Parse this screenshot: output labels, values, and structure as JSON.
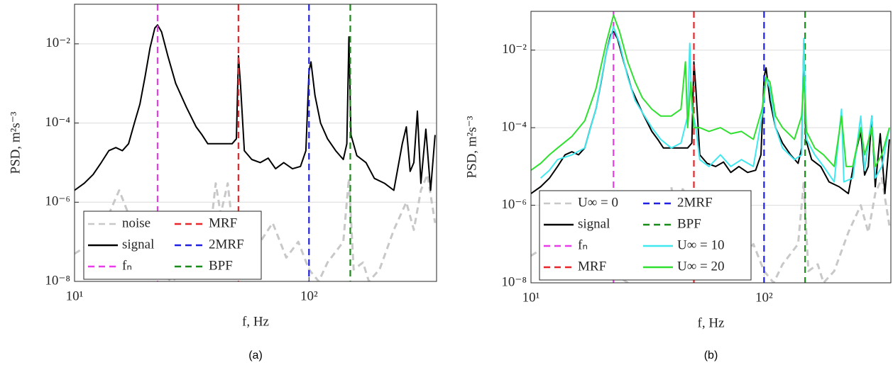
{
  "chart_data": [
    {
      "type": "line",
      "caption": "(a)",
      "xlabel": "f, Hz",
      "ylabel": "PSD, m²s⁻³",
      "xscale": "log",
      "yscale": "log",
      "xlim": [
        10,
        350
      ],
      "ylim": [
        1e-08,
        0.1
      ],
      "xticks": [
        {
          "value": 10,
          "label": "10¹"
        },
        {
          "value": 100,
          "label": "10²"
        }
      ],
      "yticks": [
        {
          "value": 1e-08,
          "label": "10⁻⁸"
        },
        {
          "value": 1e-06,
          "label": "10⁻⁶"
        },
        {
          "value": 0.0001,
          "label": "10⁻⁴"
        },
        {
          "value": 0.01,
          "label": "10⁻²"
        }
      ],
      "grid": true,
      "legend": "lower left",
      "series": [
        {
          "name": "noise",
          "color": "#c8c8c8",
          "style": "dashed",
          "x": [
            10,
            12,
            14,
            15.5,
            17,
            19,
            22,
            26,
            30,
            35,
            38,
            40,
            42,
            45,
            48,
            52,
            58,
            62,
            70,
            80,
            90,
            100,
            110,
            120,
            140,
            148,
            155,
            170,
            180,
            200,
            230,
            260,
            280,
            300,
            320,
            345
          ],
          "values": [
            5e-08,
            1e-07,
            5e-07,
            2e-06,
            5e-07,
            5e-08,
            2e-08,
            1e-08,
            2e-08,
            5e-08,
            2e-07,
            3e-06,
            5e-07,
            3e-06,
            1e-07,
            2e-07,
            2e-08,
            1e-07,
            3e-07,
            4e-08,
            1e-07,
            2e-08,
            1e-08,
            3e-08,
            1e-07,
            4e-06,
            2e-08,
            3e-08,
            1e-08,
            2e-08,
            2e-07,
            1e-06,
            2e-07,
            2e-06,
            5e-06,
            3e-07
          ]
        },
        {
          "name": "signal",
          "color": "#000000",
          "style": "solid",
          "x": [
            10,
            11,
            12,
            13,
            14,
            15,
            16,
            17,
            18,
            19,
            20,
            21,
            22,
            22.6,
            23.5,
            25,
            27,
            30,
            33,
            35,
            37,
            40,
            43,
            47,
            49,
            50,
            51,
            53,
            57,
            62,
            67,
            72,
            78,
            85,
            92,
            97,
            100,
            102,
            106,
            112,
            120,
            130,
            140,
            145,
            148,
            151,
            160,
            175,
            190,
            210,
            230,
            250,
            260,
            270,
            280,
            290,
            300,
            315,
            330,
            345
          ],
          "values": [
            2e-06,
            3e-06,
            5e-06,
            1e-05,
            2e-05,
            2.4e-05,
            2e-05,
            3e-05,
            0.0001,
            0.0003,
            0.0015,
            0.008,
            0.025,
            0.03,
            0.02,
            0.005,
            0.001,
            0.00025,
            8e-05,
            5e-05,
            3e-05,
            3e-05,
            3e-05,
            3e-05,
            4e-05,
            0.005,
            0.001,
            2e-05,
            1.2e-05,
            1e-05,
            1.3e-05,
            7e-06,
            1e-05,
            7e-06,
            8e-06,
            2e-05,
            0.002,
            0.0035,
            0.0005,
            0.0001,
            4e-05,
            2e-05,
            1.2e-05,
            3e-05,
            0.015,
            5e-05,
            1.5e-05,
            1e-05,
            4e-06,
            3e-06,
            2e-06,
            3e-05,
            8e-05,
            6e-06,
            1e-05,
            0.0002,
            3e-06,
            7e-05,
            2e-06,
            5e-05
          ]
        },
        {
          "name": "fₙ",
          "color": "#e83ce8",
          "style": "dashed",
          "x": 22.6
        },
        {
          "name": "MRF",
          "color": "#e8262a",
          "style": "dashed",
          "x": 50
        },
        {
          "name": "2MRF",
          "color": "#2020e0",
          "style": "dashed",
          "x": 100
        },
        {
          "name": "BPF",
          "color": "#1a8a1a",
          "style": "dashed",
          "x": 150
        }
      ]
    },
    {
      "type": "line",
      "caption": "(b)",
      "xlabel": "f, Hz",
      "ylabel": "PSD, m²s⁻³",
      "xscale": "log",
      "yscale": "log",
      "xlim": [
        10,
        350
      ],
      "ylim": [
        1e-08,
        0.1
      ],
      "xticks": [
        {
          "value": 10,
          "label": "10¹"
        },
        {
          "value": 100,
          "label": "10²"
        }
      ],
      "yticks": [
        {
          "value": 1e-08,
          "label": "10⁻⁸"
        },
        {
          "value": 1e-06,
          "label": "10⁻⁶"
        },
        {
          "value": 0.0001,
          "label": "10⁻⁴"
        },
        {
          "value": 0.01,
          "label": "10⁻²"
        }
      ],
      "grid": true,
      "legend": "lower left",
      "series": [
        {
          "name": "U∞ = 0",
          "color": "#c8c8c8",
          "style": "dashed",
          "x": [
            10,
            12,
            14,
            15.5,
            17,
            19,
            22,
            26,
            30,
            35,
            38,
            40,
            42,
            45,
            48,
            52,
            58,
            62,
            70,
            80,
            90,
            100,
            110,
            120,
            140,
            148,
            155,
            170,
            180,
            200,
            230,
            260,
            280,
            300,
            320,
            345
          ],
          "values": [
            5e-08,
            1e-07,
            5e-07,
            2e-06,
            5e-07,
            5e-08,
            2e-08,
            1e-08,
            2e-08,
            5e-08,
            2e-07,
            3e-06,
            5e-07,
            3e-06,
            1e-07,
            2e-07,
            2e-08,
            1e-07,
            3e-07,
            4e-08,
            1e-07,
            2e-08,
            1e-08,
            3e-08,
            1e-07,
            4e-06,
            2e-08,
            3e-08,
            1e-08,
            2e-08,
            2e-07,
            1e-06,
            2e-07,
            2e-06,
            5e-06,
            3e-07
          ]
        },
        {
          "name": "signal",
          "color": "#000000",
          "style": "solid",
          "x": [
            10,
            11,
            12,
            13,
            14,
            15,
            16,
            17,
            18,
            19,
            20,
            21,
            22,
            22.6,
            23.5,
            25,
            27,
            30,
            33,
            35,
            37,
            40,
            43,
            47,
            49,
            50,
            51,
            53,
            57,
            62,
            67,
            72,
            78,
            85,
            92,
            97,
            100,
            102,
            106,
            112,
            120,
            130,
            140,
            145,
            148,
            151,
            160,
            175,
            190,
            210,
            230,
            250,
            260,
            270,
            280,
            290,
            300,
            315,
            330,
            345
          ],
          "values": [
            2e-06,
            3e-06,
            5e-06,
            1e-05,
            2e-05,
            2.4e-05,
            2e-05,
            3e-05,
            0.0001,
            0.0003,
            0.0015,
            0.008,
            0.025,
            0.03,
            0.02,
            0.005,
            0.001,
            0.00025,
            8e-05,
            5e-05,
            3e-05,
            3e-05,
            3e-05,
            3e-05,
            4e-05,
            0.005,
            0.001,
            2e-05,
            1.2e-05,
            1e-05,
            1.3e-05,
            7e-06,
            1e-05,
            7e-06,
            8e-06,
            2e-05,
            0.002,
            0.0035,
            0.0005,
            0.0001,
            4e-05,
            2e-05,
            1.2e-05,
            3e-05,
            0.015,
            5e-05,
            1.5e-05,
            1e-05,
            4e-06,
            3e-06,
            2e-06,
            3e-05,
            8e-05,
            6e-06,
            1e-05,
            0.0002,
            3e-06,
            7e-05,
            2e-06,
            5e-05
          ]
        },
        {
          "name": "fₙ",
          "color": "#e83ce8",
          "style": "dashed",
          "x": 22.6
        },
        {
          "name": "MRF",
          "color": "#e8262a",
          "style": "dashed",
          "x": 50
        },
        {
          "name": "2MRF",
          "color": "#2020e0",
          "style": "dashed",
          "x": 100
        },
        {
          "name": "BPF",
          "color": "#1a8a1a",
          "style": "dashed",
          "x": 150
        },
        {
          "name": "U∞ = 10",
          "color": "#40e8f0",
          "style": "solid",
          "x": [
            11,
            12,
            13,
            15,
            17,
            19,
            21,
            22.6,
            24,
            26,
            28,
            30,
            33,
            36,
            40,
            44,
            47,
            48,
            49,
            51,
            53,
            58,
            65,
            72,
            80,
            90,
            98,
            102,
            106,
            112,
            120,
            135,
            145,
            148,
            152,
            165,
            180,
            200,
            215,
            220,
            240,
            260,
            270,
            290,
            300,
            320,
            345
          ],
          "values": [
            5e-06,
            8e-06,
            1.5e-05,
            2e-05,
            3e-05,
            0.0003,
            0.008,
            0.04,
            0.015,
            0.002,
            0.0005,
            0.00025,
            0.0001,
            5e-05,
            3e-05,
            4e-05,
            0.0002,
            0.015,
            0.0003,
            0.0001,
            1.5e-05,
            1e-05,
            2e-05,
            1e-05,
            1.5e-05,
            1e-05,
            0.0002,
            0.002,
            0.001,
            0.0001,
            3e-05,
            1.5e-05,
            2e-05,
            0.02,
            5e-05,
            2e-05,
            1e-05,
            4e-06,
            0.0003,
            4e-06,
            5e-06,
            0.0002,
            8e-06,
            0.0002,
            5e-06,
            1e-05,
            0.0001
          ]
        },
        {
          "name": "U∞ = 20",
          "color": "#30e030",
          "style": "solid",
          "x": [
            10,
            11,
            12,
            13,
            15,
            17,
            19,
            21,
            22.6,
            24,
            26,
            28,
            30,
            33,
            36,
            40,
            44,
            46,
            47,
            48.5,
            50,
            53,
            58,
            65,
            72,
            80,
            90,
            98,
            102,
            106,
            112,
            120,
            135,
            145,
            148,
            152,
            165,
            180,
            200,
            215,
            225,
            240,
            260,
            270,
            290,
            300,
            320,
            345
          ],
          "values": [
            8e-06,
            1.2e-05,
            2e-05,
            3e-05,
            6e-05,
            0.00015,
            0.001,
            0.015,
            0.08,
            0.03,
            0.005,
            0.0015,
            0.0006,
            0.0003,
            0.0002,
            0.0002,
            0.0003,
            0.005,
            0.0001,
            0.0015,
            0.0001,
            0.0001,
            8e-05,
            0.0001,
            7e-05,
            8e-05,
            5e-05,
            0.0003,
            0.002,
            0.0015,
            0.0002,
            0.0001,
            5e-05,
            0.0002,
            0.002,
            8e-05,
            3e-05,
            2e-05,
            1e-05,
            0.0002,
            1e-05,
            1e-05,
            0.0001,
            2e-05,
            0.0001,
            1e-05,
            2e-05,
            0.0001
          ]
        }
      ]
    }
  ]
}
